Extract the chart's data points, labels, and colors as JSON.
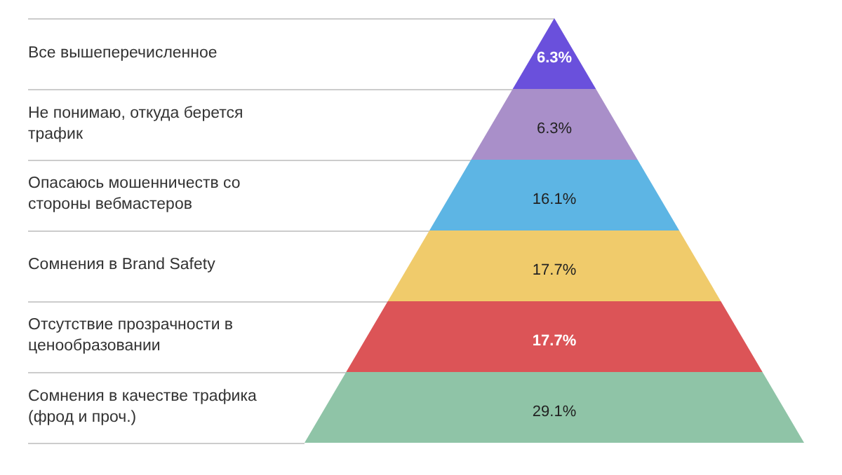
{
  "chart_data": {
    "type": "other",
    "categories": [
      "Все вышеперечисленное",
      "Не понимаю, откуда берется трафик",
      "Опасаюсь мошенничеств со стороны вебмастеров",
      "Сомнения в Brand Safety",
      "Отсутствие прозрачности в ценообразовании",
      "Сомнения в качестве трафика (фрод и проч.)"
    ],
    "values": [
      6.3,
      6.3,
      16.1,
      17.7,
      17.7,
      29.1
    ],
    "value_labels": [
      "6.3%",
      "6.3%",
      "16.1%",
      "17.7%",
      "17.7%",
      "29.1%"
    ],
    "colors": [
      "#6a50dc",
      "#a98fc9",
      "#5db5e4",
      "#f0cb6b",
      "#dc5457",
      "#8fc4a7"
    ],
    "legend": false
  }
}
